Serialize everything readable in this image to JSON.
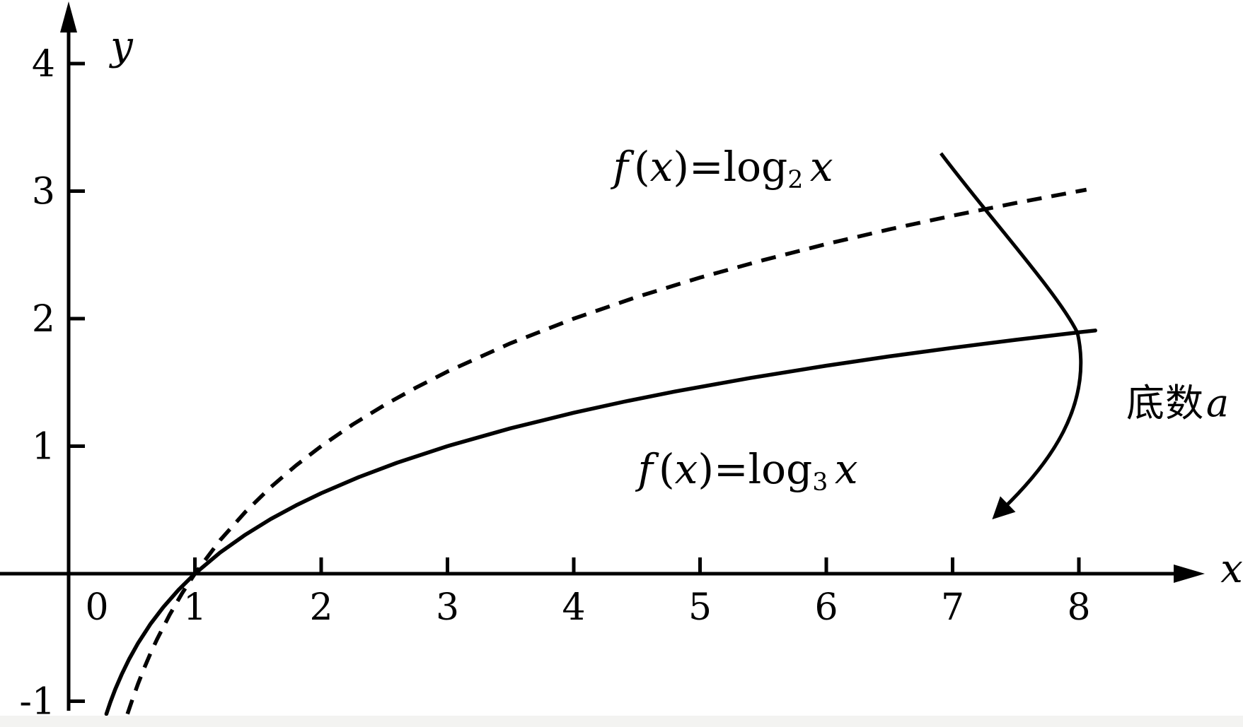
{
  "chart_data": {
    "type": "line",
    "title": "",
    "xlabel": "x",
    "ylabel": "y",
    "origin_label": "0",
    "x_ticks": {
      "values": [
        1,
        2,
        3,
        4,
        5,
        6,
        7,
        8
      ],
      "labels": [
        "1",
        "2",
        "3",
        "4",
        "5",
        "6",
        "7",
        "8"
      ]
    },
    "y_ticks": {
      "values": [
        -1,
        1,
        2,
        3,
        4
      ],
      "labels": [
        "-1",
        "1",
        "2",
        "3",
        "4"
      ]
    },
    "xlim": [
      -0.55,
      9.3
    ],
    "ylim": [
      -1.21,
      4.5
    ],
    "grid": false,
    "legend_position": "none",
    "ink_color": "#000000",
    "background": "#ffffff",
    "annotation_text": "底数a",
    "series": [
      {
        "name": "f(x)=log_2(x)",
        "line_style": "dashed",
        "points": [
          [
            0.466,
            -1.1
          ],
          [
            0.5,
            -1
          ],
          [
            0.55,
            -0.862
          ],
          [
            0.6,
            -0.737
          ],
          [
            0.65,
            -0.621
          ],
          [
            0.7,
            -0.515
          ],
          [
            0.8,
            -0.322
          ],
          [
            0.9,
            -0.152
          ],
          [
            1,
            0
          ],
          [
            1.2,
            0.263
          ],
          [
            1.4,
            0.485
          ],
          [
            1.6,
            0.678
          ],
          [
            1.8,
            0.848
          ],
          [
            2,
            1
          ],
          [
            2.25,
            1.17
          ],
          [
            2.5,
            1.322
          ],
          [
            2.75,
            1.459
          ],
          [
            3,
            1.585
          ],
          [
            3.5,
            1.807
          ],
          [
            4,
            2
          ],
          [
            4.5,
            2.17
          ],
          [
            5,
            2.322
          ],
          [
            5.5,
            2.459
          ],
          [
            6,
            2.585
          ],
          [
            6.5,
            2.7
          ],
          [
            7,
            2.807
          ],
          [
            7.5,
            2.907
          ],
          [
            8,
            3
          ],
          [
            8.06,
            3.011
          ]
        ]
      },
      {
        "name": "f(x)=log_3(x)",
        "line_style": "solid",
        "points": [
          [
            0.299,
            -1.1
          ],
          [
            0.33,
            -1.009
          ],
          [
            0.37,
            -0.905
          ],
          [
            0.42,
            -0.79
          ],
          [
            0.48,
            -0.668
          ],
          [
            0.55,
            -0.544
          ],
          [
            0.65,
            -0.392
          ],
          [
            0.75,
            -0.262
          ],
          [
            0.87,
            -0.127
          ],
          [
            1,
            0
          ],
          [
            1.2,
            0.166
          ],
          [
            1.4,
            0.306
          ],
          [
            1.6,
            0.428
          ],
          [
            1.8,
            0.535
          ],
          [
            2,
            0.631
          ],
          [
            2.3,
            0.758
          ],
          [
            2.6,
            0.87
          ],
          [
            3,
            1
          ],
          [
            3.5,
            1.14
          ],
          [
            4,
            1.262
          ],
          [
            4.4,
            1.349
          ],
          [
            4.8,
            1.428
          ],
          [
            5.4,
            1.535
          ],
          [
            6,
            1.631
          ],
          [
            6.5,
            1.704
          ],
          [
            7,
            1.771
          ],
          [
            7.5,
            1.834
          ],
          [
            8,
            1.893
          ],
          [
            8.13,
            1.907
          ]
        ]
      }
    ]
  },
  "labels": {
    "log2_formula_parts": [
      {
        "t": "f",
        "i": true
      },
      {
        "t": "(",
        "gap": true
      },
      {
        "t": "x",
        "i": true
      },
      {
        "t": ")=log"
      },
      {
        "t": "2",
        "sub": true
      },
      {
        "t": "x",
        "i": true,
        "gap": true
      }
    ],
    "log3_formula_parts": [
      {
        "t": "f",
        "i": true
      },
      {
        "t": "(",
        "gap": true
      },
      {
        "t": "x",
        "i": true
      },
      {
        "t": ")=log"
      },
      {
        "t": "3",
        "sub": true
      },
      {
        "t": "x",
        "i": true,
        "gap": true
      }
    ],
    "base_annotation": {
      "cjk": "底数",
      "var": "a"
    }
  }
}
